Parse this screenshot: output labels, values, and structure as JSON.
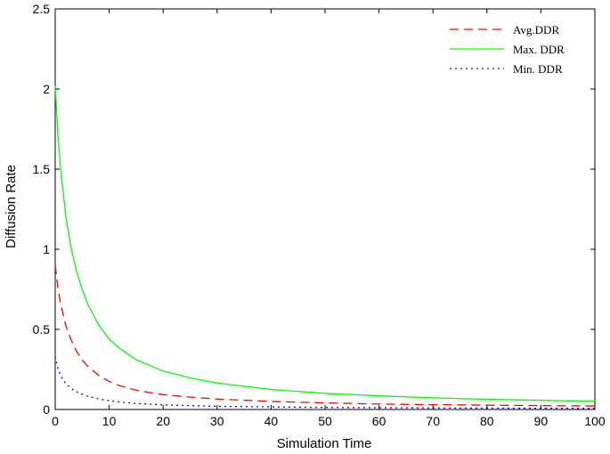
{
  "chart_data": {
    "type": "line",
    "title": "",
    "xlabel": "Simulation Time",
    "ylabel": "Diffusion Rate",
    "xlim": [
      0,
      100
    ],
    "ylim": [
      0,
      2.5
    ],
    "xticks": [
      0,
      10,
      20,
      30,
      40,
      50,
      60,
      70,
      80,
      90,
      100
    ],
    "yticks": [
      0,
      0.5,
      1,
      1.5,
      2,
      2.5
    ],
    "xtick_labels": [
      "0",
      "10",
      "20",
      "30",
      "40",
      "50",
      "60",
      "70",
      "80",
      "90",
      "100"
    ],
    "ytick_labels": [
      "0",
      "0.5",
      "1",
      "1.5",
      "2",
      "2.5"
    ],
    "grid": false,
    "legend_position": "top-right",
    "x": [
      0,
      0.5,
      1,
      2,
      3,
      4,
      5,
      6,
      8,
      10,
      12,
      15,
      20,
      25,
      30,
      40,
      50,
      60,
      70,
      80,
      90,
      100
    ],
    "series": [
      {
        "name": "Avg.DDR",
        "color": "#ff0000",
        "style": "dashed",
        "values": [
          0.9,
          0.76,
          0.66,
          0.52,
          0.43,
          0.36,
          0.31,
          0.27,
          0.215,
          0.175,
          0.148,
          0.12,
          0.093,
          0.077,
          0.065,
          0.05,
          0.041,
          0.034,
          0.03,
          0.027,
          0.024,
          0.022
        ]
      },
      {
        "name": "Max. DDR",
        "color": "#00ff00",
        "style": "solid",
        "values": [
          2.02,
          1.72,
          1.5,
          1.2,
          1.0,
          0.86,
          0.75,
          0.66,
          0.53,
          0.44,
          0.38,
          0.31,
          0.24,
          0.197,
          0.165,
          0.125,
          0.101,
          0.085,
          0.073,
          0.064,
          0.057,
          0.051
        ]
      },
      {
        "name": "Min. DDR",
        "color": "#0000ff",
        "style": "dotted",
        "values": [
          0.33,
          0.26,
          0.21,
          0.16,
          0.13,
          0.11,
          0.095,
          0.083,
          0.066,
          0.055,
          0.046,
          0.038,
          0.029,
          0.024,
          0.02,
          0.016,
          0.013,
          0.011,
          0.0095,
          0.0085,
          0.0077,
          0.007
        ]
      }
    ]
  }
}
